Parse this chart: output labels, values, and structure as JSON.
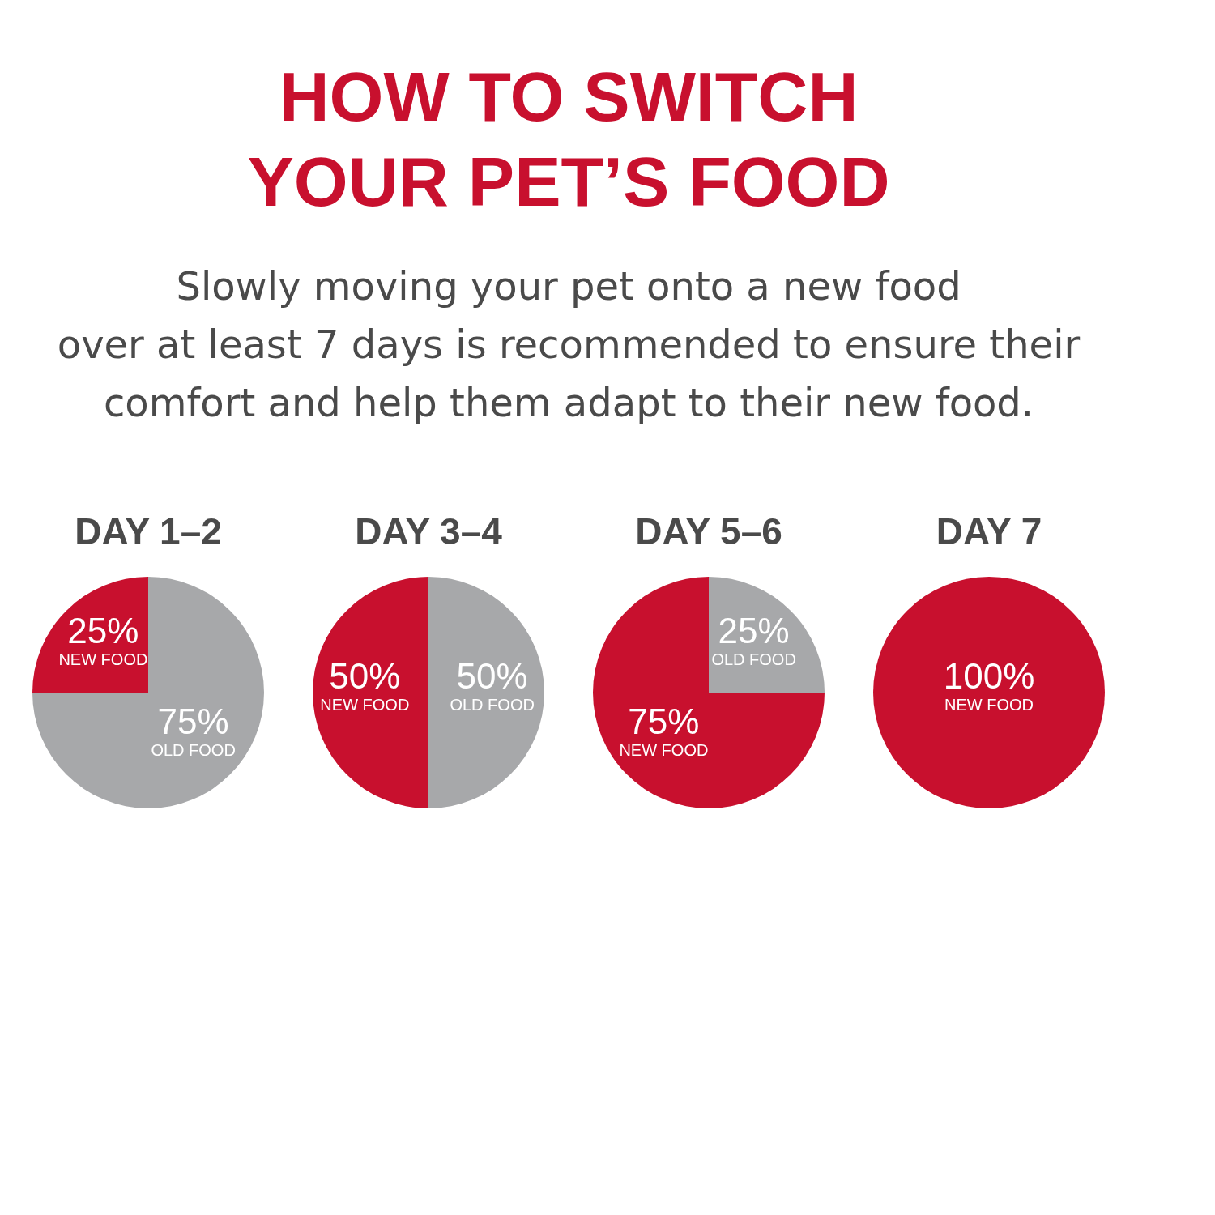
{
  "chart_data": [
    {
      "type": "other",
      "title": "HOW TO SWITCH\nYOUR PET’S FOOD",
      "subtitle": "Slowly moving your pet onto a new food\nover at least 7 days is recommended to ensure their\ncomfort and help them adapt to their new food."
    },
    {
      "type": "pie",
      "title": "DAY 1–2",
      "categories": [
        "OLD FOOD",
        "NEW FOOD"
      ],
      "values": [
        75,
        25
      ],
      "value_labels": [
        "75%",
        "25%"
      ],
      "colors": [
        "#a7a8aa",
        "#c8102e"
      ]
    },
    {
      "type": "pie",
      "title": "DAY 3–4",
      "categories": [
        "OLD FOOD",
        "NEW FOOD"
      ],
      "values": [
        50,
        50
      ],
      "value_labels": [
        "50%",
        "50%"
      ],
      "colors": [
        "#a7a8aa",
        "#c8102e"
      ]
    },
    {
      "type": "pie",
      "title": "DAY 5–6",
      "categories": [
        "OLD FOOD",
        "NEW FOOD"
      ],
      "values": [
        25,
        75
      ],
      "value_labels": [
        "25%",
        "75%"
      ],
      "colors": [
        "#a7a8aa",
        "#c8102e"
      ]
    },
    {
      "type": "pie",
      "title": "DAY 7",
      "categories": [
        "NEW FOOD"
      ],
      "values": [
        100
      ],
      "value_labels": [
        "100%"
      ],
      "colors": [
        "#c8102e"
      ]
    }
  ]
}
